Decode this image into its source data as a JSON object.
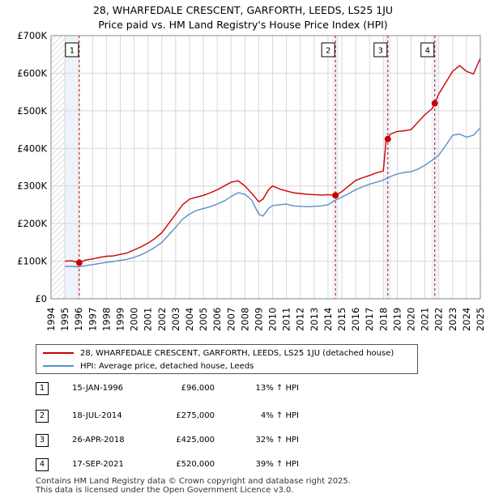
{
  "title_line1": "28, WHARFEDALE CRESCENT, GARFORTH, LEEDS, LS25 1JU",
  "title_line2": "Price paid vs. HM Land Registry's House Price Index (HPI)",
  "colors": {
    "property_line": "#cc0000",
    "hpi_line": "#5b8fc7",
    "band_fill": "#eef2fb",
    "marker_line": "#cc0000",
    "grid": "#d8d8d8"
  },
  "chart_data": {
    "type": "line",
    "title": "Price paid vs. HM Land Registry's House Price Index (HPI)",
    "xlabel": "",
    "ylabel": "",
    "xlim": [
      1994,
      2025
    ],
    "ylim": [
      0,
      700000
    ],
    "y_ticks": [
      0,
      100000,
      200000,
      300000,
      400000,
      500000,
      600000,
      700000
    ],
    "y_tick_labels": [
      "£0",
      "£100K",
      "£200K",
      "£300K",
      "£400K",
      "£500K",
      "£600K",
      "£700K"
    ],
    "x_ticks": [
      1994,
      1995,
      1996,
      1997,
      1998,
      1999,
      2000,
      2001,
      2002,
      2003,
      2004,
      2005,
      2006,
      2007,
      2008,
      2009,
      2010,
      2011,
      2012,
      2013,
      2014,
      2015,
      2016,
      2017,
      2018,
      2019,
      2020,
      2021,
      2022,
      2023,
      2024,
      2025
    ],
    "series": [
      {
        "name": "28, WHARFEDALE CRESCENT, GARFORTH, LEEDS, LS25 1JU (detached house)",
        "color": "#cc0000",
        "x": [
          1995.0,
          1995.5,
          1996.04,
          1996.5,
          1997.0,
          1997.5,
          1998.0,
          1998.5,
          1999.0,
          1999.5,
          2000.0,
          2000.5,
          2001.0,
          2001.5,
          2002.0,
          2002.5,
          2003.0,
          2003.5,
          2004.0,
          2004.5,
          2005.0,
          2005.5,
          2006.0,
          2006.5,
          2007.0,
          2007.5,
          2008.0,
          2008.5,
          2009.0,
          2009.3,
          2009.7,
          2010.0,
          2010.5,
          2011.0,
          2011.5,
          2012.0,
          2012.5,
          2013.0,
          2013.5,
          2014.0,
          2014.54,
          2015.0,
          2015.5,
          2016.0,
          2016.5,
          2017.0,
          2017.5,
          2018.0,
          2018.2,
          2018.32,
          2018.5,
          2019.0,
          2019.5,
          2020.0,
          2020.5,
          2021.0,
          2021.5,
          2021.71,
          2022.0,
          2022.5,
          2023.0,
          2023.5,
          2024.0,
          2024.5,
          2025.0
        ],
        "values": [
          100000,
          101000,
          96000,
          103000,
          106000,
          110000,
          113000,
          114000,
          118000,
          122000,
          130000,
          138000,
          148000,
          160000,
          176000,
          200000,
          225000,
          250000,
          265000,
          270000,
          275000,
          282000,
          290000,
          300000,
          310000,
          314000,
          300000,
          280000,
          258000,
          265000,
          290000,
          300000,
          292000,
          287000,
          282000,
          280000,
          278000,
          277000,
          276000,
          277000,
          275000,
          285000,
          300000,
          315000,
          322000,
          328000,
          335000,
          340000,
          425000,
          425000,
          438000,
          445000,
          447000,
          450000,
          470000,
          490000,
          505000,
          520000,
          545000,
          575000,
          605000,
          620000,
          605000,
          598000,
          640000
        ]
      },
      {
        "name": "HPI: Average price, detached house, Leeds",
        "color": "#5b8fc7",
        "x": [
          1995.0,
          1995.5,
          1996.0,
          1996.5,
          1997.0,
          1997.5,
          1998.0,
          1998.5,
          1999.0,
          1999.5,
          2000.0,
          2000.5,
          2001.0,
          2001.5,
          2002.0,
          2002.5,
          2003.0,
          2003.5,
          2004.0,
          2004.5,
          2005.0,
          2005.5,
          2006.0,
          2006.5,
          2007.0,
          2007.5,
          2008.0,
          2008.5,
          2009.0,
          2009.3,
          2009.7,
          2010.0,
          2010.5,
          2011.0,
          2011.5,
          2012.0,
          2012.5,
          2013.0,
          2013.5,
          2014.0,
          2014.5,
          2015.0,
          2015.5,
          2016.0,
          2016.5,
          2017.0,
          2017.5,
          2018.0,
          2018.5,
          2019.0,
          2019.5,
          2020.0,
          2020.5,
          2021.0,
          2021.5,
          2022.0,
          2022.5,
          2023.0,
          2023.5,
          2024.0,
          2024.5,
          2025.0
        ],
        "values": [
          86000,
          86000,
          85000,
          88000,
          91000,
          94000,
          97000,
          99000,
          102000,
          105000,
          110000,
          117000,
          126000,
          137000,
          150000,
          170000,
          190000,
          212000,
          225000,
          235000,
          240000,
          245000,
          252000,
          260000,
          272000,
          282000,
          278000,
          262000,
          225000,
          220000,
          240000,
          248000,
          250000,
          252000,
          247000,
          246000,
          245000,
          246000,
          247000,
          250000,
          262000,
          270000,
          280000,
          290000,
          298000,
          305000,
          310000,
          316000,
          325000,
          332000,
          336000,
          338000,
          345000,
          355000,
          368000,
          382000,
          408000,
          435000,
          438000,
          430000,
          435000,
          455000
        ]
      }
    ],
    "shaded_band": {
      "x_from": 1995.0,
      "x_to": 1996.04,
      "hatch": "1995-01 to 1996-01"
    },
    "transactions": [
      {
        "label": "1",
        "date": 1996.04,
        "value": 96000
      },
      {
        "label": "2",
        "date": 2014.54,
        "value": 275000
      },
      {
        "label": "3",
        "date": 2018.32,
        "value": 425000
      },
      {
        "label": "4",
        "date": 2021.71,
        "value": 520000
      }
    ],
    "legend_position": "below"
  },
  "legend": {
    "property": "28, WHARFEDALE CRESCENT, GARFORTH, LEEDS, LS25 1JU (detached house)",
    "hpi": "HPI: Average price, detached house, Leeds"
  },
  "table": [
    {
      "num": "1",
      "date": "15-JAN-1996",
      "price": "£96,000",
      "hpi": "13% ↑ HPI"
    },
    {
      "num": "2",
      "date": "18-JUL-2014",
      "price": "£275,000",
      "hpi": "4% ↑ HPI"
    },
    {
      "num": "3",
      "date": "26-APR-2018",
      "price": "£425,000",
      "hpi": "32% ↑ HPI"
    },
    {
      "num": "4",
      "date": "17-SEP-2021",
      "price": "£520,000",
      "hpi": "39% ↑ HPI"
    }
  ],
  "footer_line1": "Contains HM Land Registry data © Crown copyright and database right 2025.",
  "footer_line2": "This data is licensed under the Open Government Licence v3.0."
}
